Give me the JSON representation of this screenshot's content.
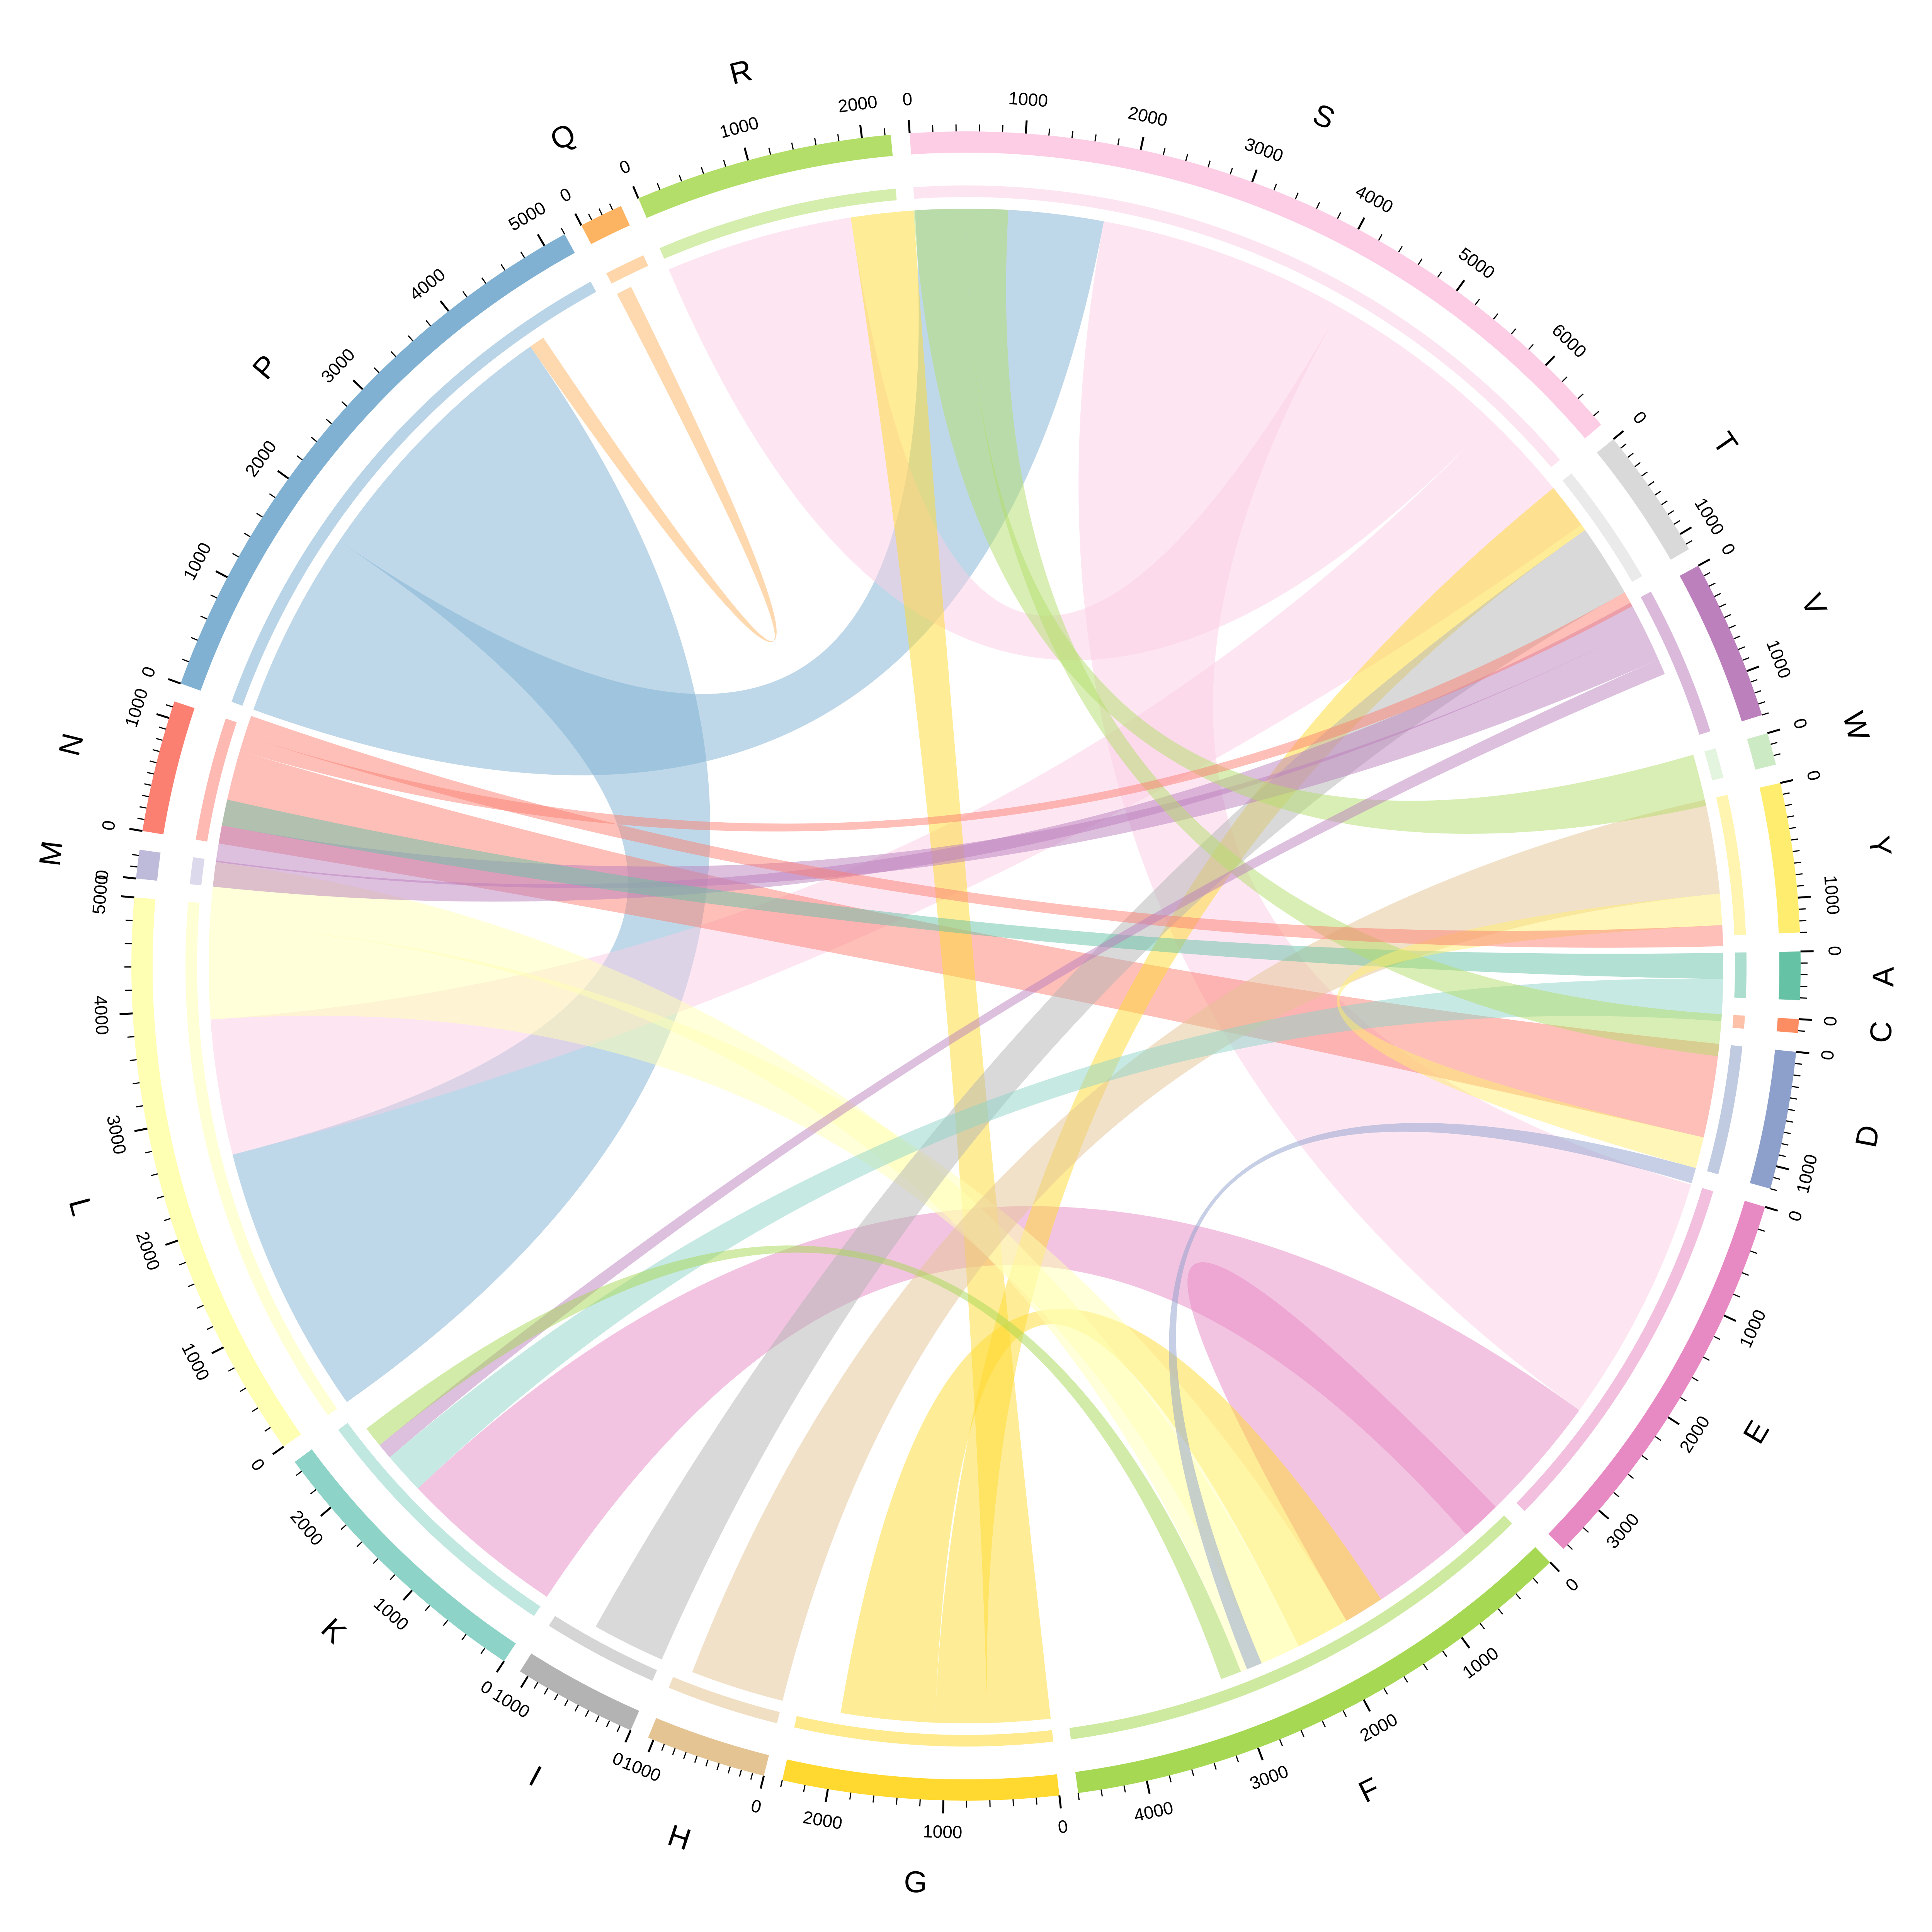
{
  "chart_data": {
    "type": "chord",
    "title": "",
    "sectors": [
      {
        "name": "A",
        "size": 420,
        "color": "#66C2A5"
      },
      {
        "name": "C",
        "size": 120,
        "color": "#FC8D62"
      },
      {
        "name": "D",
        "size": 1200,
        "color": "#8DA0CB"
      },
      {
        "name": "E",
        "size": 3450,
        "color": "#E78AC3"
      },
      {
        "name": "F",
        "size": 4600,
        "color": "#A6D854"
      },
      {
        "name": "G",
        "size": 2400,
        "color": "#FFD92F"
      },
      {
        "name": "H",
        "size": 1050,
        "color": "#E5C494"
      },
      {
        "name": "I",
        "size": 1080,
        "color": "#B3B3B3"
      },
      {
        "name": "K",
        "size": 2500,
        "color": "#8DD3C7"
      },
      {
        "name": "L",
        "size": 5000,
        "color": "#FFFFB3"
      },
      {
        "name": "M",
        "size": 250,
        "color": "#BEBADA"
      },
      {
        "name": "N",
        "size": 1150,
        "color": "#FB8072"
      },
      {
        "name": "P",
        "size": 5200,
        "color": "#80B1D3"
      },
      {
        "name": "Q",
        "size": 380,
        "color": "#FDB462"
      },
      {
        "name": "R",
        "size": 2250,
        "color": "#B3DE69"
      },
      {
        "name": "S",
        "size": 6700,
        "color": "#FCCDE5"
      },
      {
        "name": "T",
        "size": 1150,
        "color": "#D9D9D9"
      },
      {
        "name": "V",
        "size": 1400,
        "color": "#BC80BD"
      },
      {
        "name": "W",
        "size": 280,
        "color": "#CCEBC5"
      },
      {
        "name": "Y",
        "size": 1300,
        "color": "#FFED6F"
      }
    ],
    "links": [
      {
        "from": "P",
        "to": "S",
        "value": 1800
      },
      {
        "from": "P",
        "to": "L",
        "value": 2600
      },
      {
        "from": "S",
        "to": "E",
        "value": 2400
      },
      {
        "from": "S",
        "to": "R",
        "value": 1800
      },
      {
        "from": "S",
        "to": "L",
        "value": 1300
      },
      {
        "from": "E",
        "to": "K",
        "value": 1600
      },
      {
        "from": "E",
        "to": "F",
        "value": 1400
      },
      {
        "from": "N",
        "to": "D",
        "value": 900
      },
      {
        "from": "G",
        "to": "R",
        "value": 600
      },
      {
        "from": "G",
        "to": "T",
        "value": 500
      },
      {
        "from": "G",
        "to": "F",
        "value": 900
      },
      {
        "from": "L",
        "to": "E",
        "value": 900
      },
      {
        "from": "L",
        "to": "F",
        "value": 600
      },
      {
        "from": "H",
        "to": "Y",
        "value": 900
      },
      {
        "from": "I",
        "to": "T",
        "value": 700
      },
      {
        "from": "V",
        "to": "M",
        "value": 250
      },
      {
        "from": "V",
        "to": "L",
        "value": 350
      },
      {
        "from": "A",
        "to": "L",
        "value": 250
      },
      {
        "from": "K",
        "to": "A",
        "value": 400
      },
      {
        "from": "R",
        "to": "W",
        "value": 500
      },
      {
        "from": "R",
        "to": "C",
        "value": 400
      },
      {
        "from": "N",
        "to": "T",
        "value": 150
      },
      {
        "from": "Y",
        "to": "D",
        "value": 300
      },
      {
        "from": "N",
        "to": "Y",
        "value": 200
      },
      {
        "from": "V",
        "to": "K",
        "value": 150
      },
      {
        "from": "Q",
        "to": "P",
        "value": 150
      },
      {
        "from": "F",
        "to": "K",
        "value": 200
      },
      {
        "from": "D",
        "to": "E",
        "value": 150
      }
    ]
  }
}
